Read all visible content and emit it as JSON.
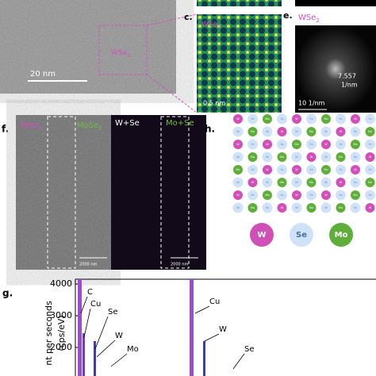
{
  "panel_a": {
    "scale_bar": "20 nm",
    "label": {
      "text": "WSe",
      "sub": "2"
    }
  },
  "panel_c": {
    "letter": "c.",
    "label": {
      "text": "WSe",
      "sub": "2"
    },
    "scale_bar": "0.5 nm"
  },
  "panel_e": {
    "letter": "e.",
    "label": {
      "text": "WSe",
      "sub": "2"
    },
    "spacing": "7.557",
    "spacing_unit": "1/nm",
    "scale_bar": "10 1/nm"
  },
  "panel_f": {
    "letter": "f.",
    "labels": [
      {
        "text": "WSe",
        "sub": "2"
      },
      {
        "text": "MoSe",
        "sub": "2"
      },
      {
        "text": "W+Se",
        "sub": ""
      },
      {
        "text": "Mo+Se",
        "sub": ""
      }
    ],
    "scale_bars": [
      "2000 nm",
      "2000 nm"
    ]
  },
  "panel_h": {
    "letter": "h.",
    "lattice": [
      [
        "W",
        "Se",
        "Mo",
        "Se",
        "W",
        "Se",
        "Mo",
        "Se",
        "W",
        "Se"
      ],
      [
        "Se",
        "Mo",
        "Se",
        "W",
        "Se",
        "Mo",
        "Se",
        "W",
        "Se",
        "Mo"
      ],
      [
        "W",
        "Se",
        "W",
        "Se",
        "Mo",
        "Se",
        "W",
        "Se",
        "Mo",
        "Se"
      ],
      [
        "Se",
        "Mo",
        "Se",
        "Mo",
        "Se",
        "W",
        "Se",
        "Mo",
        "Se",
        "W"
      ],
      [
        "Mo",
        "Se",
        "W",
        "Se",
        "W",
        "Se",
        "Mo",
        "Se",
        "W",
        "Se"
      ],
      [
        "Se",
        "W",
        "Se",
        "Mo",
        "Se",
        "Mo",
        "Se",
        "W",
        "Se",
        "Mo"
      ],
      [
        "W",
        "Se",
        "Mo",
        "Se",
        "W",
        "Se",
        "W",
        "Se",
        "Mo",
        "Se"
      ],
      [
        "Se",
        "Mo",
        "Se",
        "W",
        "Se",
        "Mo",
        "Se",
        "Mo",
        "Se",
        "W"
      ]
    ],
    "legend": [
      "W",
      "Se",
      "Mo"
    ]
  },
  "panel_g": {
    "letter": "g.",
    "y_label": [
      "nt per seconds",
      "(cps/eV)"
    ],
    "yticks": [
      2000,
      3000,
      4000
    ],
    "annotations": [
      "C",
      "Cu",
      "Se",
      "W",
      "Mo",
      "Cu",
      "W",
      "Se"
    ]
  }
}
